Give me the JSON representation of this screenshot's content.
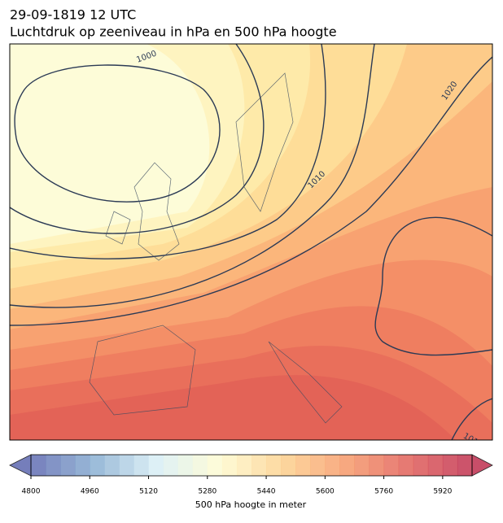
{
  "header": {
    "title": "29-09-1819 12 UTC",
    "subtitle": "Luchtdruk op zeeniveau in hPa en 500 hPa hoogte"
  },
  "map": {
    "isobar_labels": [
      "1000",
      "1010",
      "1020",
      "101"
    ]
  },
  "colorbar": {
    "label": "500 hPa hoogte in meter",
    "lim": [
      4800,
      6000
    ],
    "step": 40,
    "ticks": [
      4800,
      4960,
      5120,
      5280,
      5440,
      5600,
      5760,
      5920
    ],
    "colormap": [
      "#5e68b0",
      "#88aed1",
      "#d8eef5",
      "#fefbd0",
      "#fdd18e",
      "#f69a6a",
      "#e1605a",
      "#bf3050"
    ]
  }
}
